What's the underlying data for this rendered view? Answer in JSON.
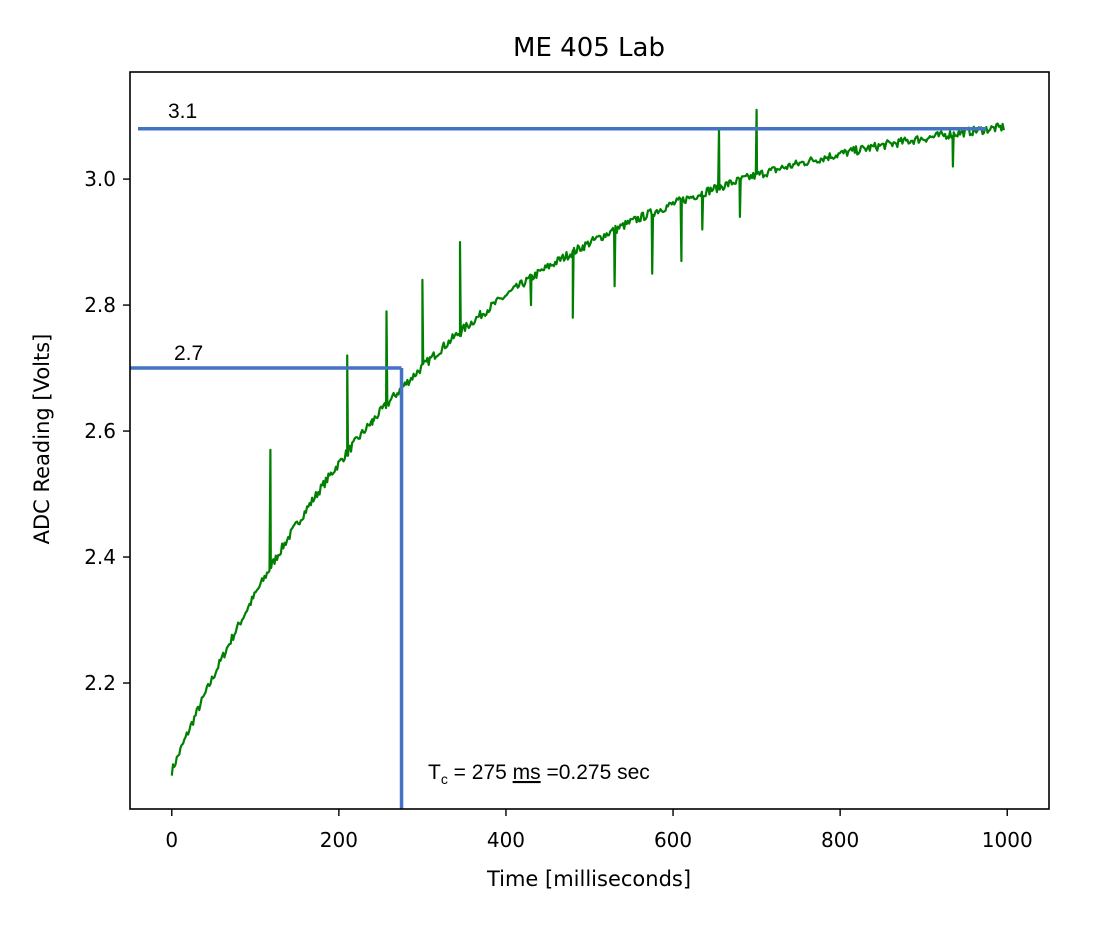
{
  "chart_data": {
    "type": "line",
    "title": "ME 405 Lab",
    "xlabel": "Time [milliseconds]",
    "ylabel": "ADC Reading [Volts]",
    "xlim": [
      -50,
      1050
    ],
    "ylim": [
      2.0,
      3.17
    ],
    "xticks": [
      0,
      200,
      400,
      600,
      800,
      1000
    ],
    "yticks": [
      2.2,
      2.4,
      2.6,
      2.8,
      3.0
    ],
    "ytick_labels": [
      "2.2",
      "2.4",
      "2.6",
      "2.8",
      "3.0"
    ],
    "grid": false,
    "series": [
      {
        "color": "#008000",
        "model": {
          "v0": 2.06,
          "vfinal": 3.135,
          "tau_ms": 330,
          "t_start": 0,
          "t_end": 997
        },
        "spikes": [
          {
            "x": 118,
            "y": 2.57
          },
          {
            "x": 210,
            "y": 2.72
          },
          {
            "x": 257,
            "y": 2.79
          },
          {
            "x": 300,
            "y": 2.84
          },
          {
            "x": 345,
            "y": 2.9
          },
          {
            "x": 655,
            "y": 3.08
          },
          {
            "x": 700,
            "y": 3.11
          },
          {
            "x": 240,
            "y": 2.61
          },
          {
            "x": 430,
            "y": 2.8
          },
          {
            "x": 480,
            "y": 2.78
          },
          {
            "x": 530,
            "y": 2.83
          },
          {
            "x": 575,
            "y": 2.85
          },
          {
            "x": 610,
            "y": 2.87
          },
          {
            "x": 635,
            "y": 2.92
          },
          {
            "x": 680,
            "y": 2.94
          },
          {
            "x": 935,
            "y": 3.02
          }
        ]
      }
    ],
    "annotations": {
      "hline_top": {
        "y": 3.08,
        "x_end": 975,
        "label": "3.1",
        "color": "#4472C4"
      },
      "hline_mid": {
        "y": 2.7,
        "x_end": 275,
        "label": "2.7",
        "color": "#4472C4"
      },
      "vline": {
        "x": 275,
        "color": "#4472C4"
      },
      "tc_label": {
        "main": "T",
        "sub": "c",
        "rest": " = 275 ",
        "ms": "ms",
        "tail": " =0.275 sec"
      }
    }
  }
}
